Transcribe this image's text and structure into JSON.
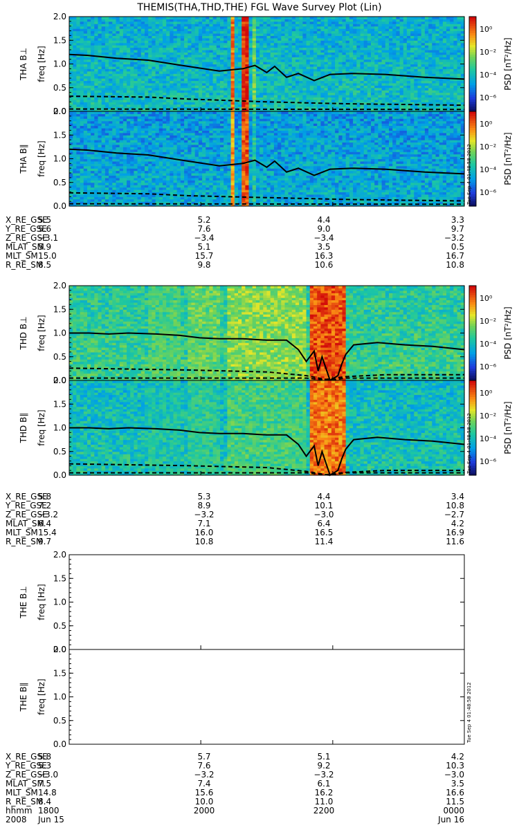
{
  "chart_data": {
    "type": "heatmap",
    "title": "THEMIS(THA,THD,THE) FGL Wave Survey Plot (Lin)",
    "ylabel": "freq [Hz]",
    "ylim": [
      0,
      2.0
    ],
    "yticks": [
      "0.0",
      "0.5",
      "1.0",
      "1.5",
      "2.0"
    ],
    "colorbar": {
      "label": "PSD [nT²/Hz]",
      "ticks": [
        "10⁰",
        "10⁻²",
        "10⁻⁴",
        "10⁻⁶"
      ],
      "scale": "log"
    },
    "stamp": "Tue Sep  4 01:48:58 2012",
    "xaxis": {
      "time_rows": [
        {
          "label": "hhmm",
          "values": [
            "1800",
            "2000",
            "2200",
            "0000"
          ]
        },
        {
          "label": "2008",
          "values": [
            "Jun 15",
            "",
            "",
            "Jun 16"
          ]
        }
      ]
    },
    "probes": [
      {
        "panels": [
          {
            "label": "THA B⊥",
            "has_data": true,
            "stamp": false,
            "level": 0.35,
            "bursts": [
              [
                0.405,
                0.415,
                0.9
              ],
              [
                0.435,
                0.455,
                1.0
              ],
              [
                0.46,
                0.475,
                0.6
              ],
              [
                0.29,
                0.295,
                0.3
              ],
              [
                0.53,
                0.535,
                0.35
              ],
              [
                0.6,
                0.605,
                0.35
              ]
            ],
            "fce": [
              [
                0.0,
                1.2
              ],
              [
                0.05,
                1.18
              ],
              [
                0.12,
                1.12
              ],
              [
                0.2,
                1.08
              ],
              [
                0.3,
                0.95
              ],
              [
                0.38,
                0.85
              ],
              [
                0.44,
                0.9
              ],
              [
                0.47,
                0.97
              ],
              [
                0.5,
                0.82
              ],
              [
                0.52,
                0.95
              ],
              [
                0.55,
                0.72
              ],
              [
                0.58,
                0.8
              ],
              [
                0.62,
                0.65
              ],
              [
                0.66,
                0.78
              ],
              [
                0.72,
                0.8
              ],
              [
                0.8,
                0.78
              ],
              [
                0.9,
                0.72
              ],
              [
                1.0,
                0.68
              ]
            ],
            "fcp": [
              [
                0.0,
                0.32
              ],
              [
                0.2,
                0.3
              ],
              [
                0.3,
                0.26
              ],
              [
                0.4,
                0.23
              ],
              [
                0.5,
                0.2
              ],
              [
                0.6,
                0.18
              ],
              [
                0.7,
                0.16
              ],
              [
                0.8,
                0.15
              ],
              [
                0.9,
                0.14
              ],
              [
                1.0,
                0.13
              ]
            ],
            "fhe": [
              [
                0.0,
                0.05
              ],
              [
                1.0,
                0.04
              ]
            ]
          },
          {
            "label": "THA B∥",
            "has_data": true,
            "stamp": true,
            "level": 0.3,
            "bursts": [
              [
                0.405,
                0.415,
                0.85
              ],
              [
                0.435,
                0.455,
                0.95
              ],
              [
                0.46,
                0.475,
                0.5
              ],
              [
                0.29,
                0.295,
                0.25
              ]
            ],
            "fce": [
              [
                0.0,
                1.2
              ],
              [
                0.05,
                1.18
              ],
              [
                0.12,
                1.12
              ],
              [
                0.2,
                1.08
              ],
              [
                0.3,
                0.95
              ],
              [
                0.38,
                0.85
              ],
              [
                0.44,
                0.9
              ],
              [
                0.47,
                0.97
              ],
              [
                0.5,
                0.82
              ],
              [
                0.52,
                0.95
              ],
              [
                0.55,
                0.72
              ],
              [
                0.58,
                0.8
              ],
              [
                0.62,
                0.65
              ],
              [
                0.66,
                0.78
              ],
              [
                0.72,
                0.8
              ],
              [
                0.8,
                0.78
              ],
              [
                0.9,
                0.72
              ],
              [
                1.0,
                0.68
              ]
            ],
            "fcp": [
              [
                0.0,
                0.28
              ],
              [
                0.2,
                0.26
              ],
              [
                0.3,
                0.22
              ],
              [
                0.4,
                0.2
              ],
              [
                0.5,
                0.18
              ],
              [
                0.6,
                0.16
              ],
              [
                0.7,
                0.14
              ],
              [
                0.8,
                0.13
              ],
              [
                0.9,
                0.12
              ],
              [
                1.0,
                0.11
              ]
            ],
            "fhe": [
              [
                0.0,
                0.05
              ],
              [
                1.0,
                0.04
              ]
            ]
          }
        ],
        "coords": [
          {
            "label": "X_RE_GSE",
            "values": [
              "5.5",
              "5.2",
              "4.4",
              "3.3"
            ]
          },
          {
            "label": "Y_RE_GSE",
            "values": [
              "5.6",
              "7.6",
              "9.0",
              "9.7"
            ]
          },
          {
            "label": "Z_RE_GSE",
            "values": [
              "−3.1",
              "−3.4",
              "−3.4",
              "−3.2"
            ]
          },
          {
            "label": "MLAT_SM",
            "values": [
              "5.9",
              "5.1",
              "3.5",
              "0.5"
            ]
          },
          {
            "label": "MLT_SM",
            "values": [
              "15.0",
              "15.7",
              "16.3",
              "16.7"
            ]
          },
          {
            "label": "R_RE_SM",
            "values": [
              "8.5",
              "9.8",
              "10.6",
              "10.8"
            ]
          }
        ]
      },
      {
        "panels": [
          {
            "label": "THD B⊥",
            "has_data": true,
            "stamp": false,
            "level": 0.45,
            "bursts": [
              [
                0.2,
                0.28,
                0.55
              ],
              [
                0.3,
                0.38,
                0.6
              ],
              [
                0.4,
                0.6,
                0.65
              ],
              [
                0.61,
                0.7,
                0.95
              ],
              [
                0.14,
                0.16,
                0.4
              ],
              [
                0.9,
                0.92,
                0.35
              ]
            ],
            "fce": [
              [
                0.0,
                1.0
              ],
              [
                0.05,
                1.0
              ],
              [
                0.1,
                0.98
              ],
              [
                0.15,
                1.0
              ],
              [
                0.22,
                0.98
              ],
              [
                0.28,
                0.95
              ],
              [
                0.33,
                0.9
              ],
              [
                0.38,
                0.88
              ],
              [
                0.44,
                0.88
              ],
              [
                0.5,
                0.85
              ],
              [
                0.55,
                0.85
              ],
              [
                0.58,
                0.65
              ],
              [
                0.6,
                0.4
              ],
              [
                0.62,
                0.62
              ],
              [
                0.63,
                0.2
              ],
              [
                0.64,
                0.5
              ],
              [
                0.66,
                0.0
              ],
              [
                0.68,
                0.1
              ],
              [
                0.69,
                0.35
              ],
              [
                0.7,
                0.55
              ],
              [
                0.72,
                0.75
              ],
              [
                0.78,
                0.8
              ],
              [
                0.85,
                0.75
              ],
              [
                0.92,
                0.72
              ],
              [
                1.0,
                0.65
              ]
            ],
            "fcp": [
              [
                0.0,
                0.26
              ],
              [
                0.3,
                0.22
              ],
              [
                0.5,
                0.18
              ],
              [
                0.6,
                0.1
              ],
              [
                0.65,
                0.02
              ],
              [
                0.7,
                0.08
              ],
              [
                0.8,
                0.12
              ],
              [
                1.0,
                0.12
              ]
            ],
            "fhe": [
              [
                0.0,
                0.05
              ],
              [
                0.6,
                0.05
              ],
              [
                0.66,
                0.0
              ],
              [
                0.7,
                0.05
              ],
              [
                1.0,
                0.05
              ]
            ]
          },
          {
            "label": "THD B∥",
            "has_data": true,
            "stamp": true,
            "level": 0.38,
            "bursts": [
              [
                0.2,
                0.28,
                0.45
              ],
              [
                0.3,
                0.38,
                0.5
              ],
              [
                0.4,
                0.6,
                0.55
              ],
              [
                0.61,
                0.7,
                0.9
              ],
              [
                0.14,
                0.16,
                0.3
              ]
            ],
            "fce": [
              [
                0.0,
                1.0
              ],
              [
                0.05,
                1.0
              ],
              [
                0.1,
                0.98
              ],
              [
                0.15,
                1.0
              ],
              [
                0.22,
                0.98
              ],
              [
                0.28,
                0.95
              ],
              [
                0.33,
                0.9
              ],
              [
                0.38,
                0.88
              ],
              [
                0.44,
                0.88
              ],
              [
                0.5,
                0.85
              ],
              [
                0.55,
                0.85
              ],
              [
                0.58,
                0.65
              ],
              [
                0.6,
                0.4
              ],
              [
                0.62,
                0.62
              ],
              [
                0.63,
                0.2
              ],
              [
                0.64,
                0.5
              ],
              [
                0.66,
                0.0
              ],
              [
                0.68,
                0.1
              ],
              [
                0.69,
                0.35
              ],
              [
                0.7,
                0.55
              ],
              [
                0.72,
                0.75
              ],
              [
                0.78,
                0.8
              ],
              [
                0.85,
                0.75
              ],
              [
                0.92,
                0.72
              ],
              [
                1.0,
                0.65
              ]
            ],
            "fcp": [
              [
                0.0,
                0.24
              ],
              [
                0.3,
                0.2
              ],
              [
                0.5,
                0.16
              ],
              [
                0.6,
                0.08
              ],
              [
                0.65,
                0.01
              ],
              [
                0.7,
                0.06
              ],
              [
                0.8,
                0.1
              ],
              [
                1.0,
                0.1
              ]
            ],
            "fhe": [
              [
                0.0,
                0.05
              ],
              [
                0.6,
                0.05
              ],
              [
                0.66,
                0.0
              ],
              [
                0.7,
                0.05
              ],
              [
                1.0,
                0.05
              ]
            ]
          }
        ],
        "coords": [
          {
            "label": "X_RE_GSE",
            "values": [
              "5.8",
              "5.3",
              "4.4",
              "3.4"
            ]
          },
          {
            "label": "Y_RE_GSE",
            "values": [
              "7.2",
              "8.9",
              "10.1",
              "10.8"
            ]
          },
          {
            "label": "Z_RE_GSE",
            "values": [
              "−3.2",
              "−3.2",
              "−3.0",
              "−2.7"
            ]
          },
          {
            "label": "MLAT_SM",
            "values": [
              "6.4",
              "7.1",
              "6.4",
              "4.2"
            ]
          },
          {
            "label": "MLT_SM",
            "values": [
              "15.4",
              "16.0",
              "16.5",
              "16.9"
            ]
          },
          {
            "label": "R_RE_SM",
            "values": [
              "9.7",
              "10.8",
              "11.4",
              "11.6"
            ]
          }
        ]
      },
      {
        "panels": [
          {
            "label": "THE B⊥",
            "has_data": false,
            "stamp": false
          },
          {
            "label": "THE B∥",
            "has_data": false,
            "stamp": true
          }
        ],
        "coords": [
          {
            "label": "X_RE_GSE",
            "values": [
              "5.8",
              "5.7",
              "5.1",
              "4.2"
            ]
          },
          {
            "label": "Y_RE_GSE",
            "values": [
              "5.3",
              "7.6",
              "9.2",
              "10.3"
            ]
          },
          {
            "label": "Z_RE_GSE",
            "values": [
              "−3.0",
              "−3.2",
              "−3.2",
              "−3.0"
            ]
          },
          {
            "label": "MLAT_SM",
            "values": [
              "7.5",
              "7.4",
              "6.1",
              "3.5"
            ]
          },
          {
            "label": "MLT_SM",
            "values": [
              "14.8",
              "15.6",
              "16.2",
              "16.6"
            ]
          },
          {
            "label": "R_RE_SM",
            "values": [
              "8.4",
              "10.0",
              "11.0",
              "11.5"
            ]
          }
        ]
      }
    ]
  }
}
